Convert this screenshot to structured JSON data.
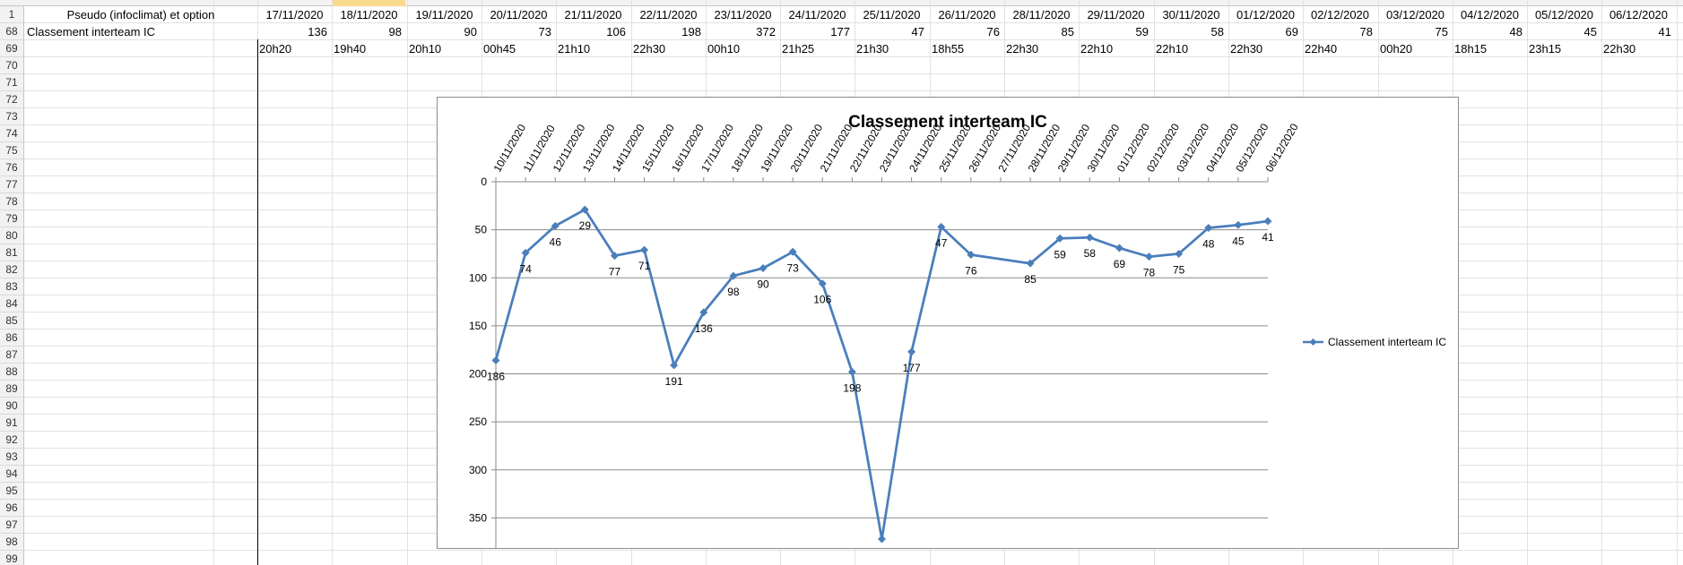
{
  "sheet": {
    "row_numbers": [
      "1",
      "68",
      "69",
      "70",
      "71",
      "72",
      "73",
      "74",
      "75",
      "76",
      "77",
      "78",
      "79",
      "80",
      "81",
      "82",
      "83",
      "84",
      "85",
      "86",
      "87",
      "88",
      "89",
      "90",
      "91",
      "92",
      "93",
      "94",
      "95",
      "96",
      "97",
      "98",
      "99"
    ],
    "header_label": "Pseudo (infoclimat) et option",
    "row68_label": "Classement interteam IC",
    "dates": [
      "17/11/2020",
      "18/11/2020",
      "19/11/2020",
      "20/11/2020",
      "21/11/2020",
      "22/11/2020",
      "23/11/2020",
      "24/11/2020",
      "25/11/2020",
      "26/11/2020",
      "28/11/2020",
      "29/11/2020",
      "30/11/2020",
      "01/12/2020",
      "02/12/2020",
      "03/12/2020",
      "04/12/2020",
      "05/12/2020",
      "06/12/2020"
    ],
    "ranks": [
      "136",
      "98",
      "90",
      "73",
      "106",
      "198",
      "372",
      "177",
      "47",
      "76",
      "85",
      "59",
      "58",
      "69",
      "78",
      "75",
      "48",
      "45",
      "41"
    ],
    "times": [
      "20h20",
      "19h40",
      "20h10",
      "00h45",
      "21h10",
      "22h30",
      "00h10",
      "21h25",
      "21h30",
      "18h55",
      "22h30",
      "22h10",
      "22h10",
      "22h30",
      "22h40",
      "00h20",
      "18h15",
      "23h15",
      "22h30"
    ]
  },
  "chart_data": {
    "type": "line",
    "title": "Classement interteam IC",
    "categories": [
      "10/11/2020",
      "11/11/2020",
      "12/11/2020",
      "13/11/2020",
      "14/11/2020",
      "15/11/2020",
      "16/11/2020",
      "17/11/2020",
      "18/11/2020",
      "19/11/2020",
      "20/11/2020",
      "21/11/2020",
      "22/11/2020",
      "23/11/2020",
      "24/11/2020",
      "25/11/2020",
      "26/11/2020",
      "27/11/2020",
      "28/11/2020",
      "29/11/2020",
      "30/11/2020",
      "01/12/2020",
      "02/12/2020",
      "03/12/2020",
      "04/12/2020",
      "05/12/2020",
      "06/12/2020"
    ],
    "series": [
      {
        "name": "Classement interteam IC",
        "color": "#4a7ebb",
        "values": [
          186,
          74,
          46,
          29,
          77,
          71,
          191,
          136,
          98,
          90,
          73,
          106,
          198,
          372,
          177,
          47,
          76,
          null,
          85,
          59,
          58,
          69,
          78,
          75,
          48,
          45,
          41
        ],
        "labels": [
          "186",
          "74",
          "46",
          "29",
          "77",
          "71",
          "191",
          "136",
          "98",
          "90",
          "73",
          "106",
          "198",
          "372",
          "177",
          "47",
          "76",
          "",
          "85",
          "59",
          "58",
          "69",
          "78",
          "75",
          "48",
          "45",
          "41"
        ]
      }
    ],
    "y_ticks": [
      "0",
      "50",
      "100",
      "150",
      "200",
      "250",
      "300",
      "350"
    ],
    "ylim": [
      0,
      372
    ],
    "y_reversed": true,
    "grid": true,
    "legend": "right"
  }
}
